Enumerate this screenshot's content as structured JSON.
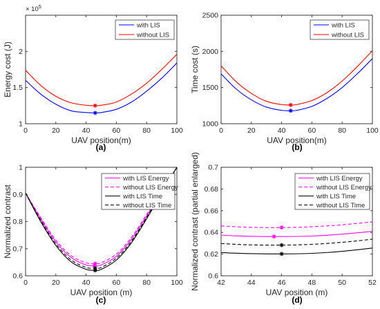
{
  "chart_data": [
    {
      "id": "a",
      "type": "line",
      "caption": "(a)",
      "xlabel": "UAV position(m)",
      "ylabel": "Energy cost (J)",
      "multiplier": "× 10",
      "multiplier_exp": "5",
      "xlim": [
        0,
        100
      ],
      "ylim": [
        1,
        2.5
      ],
      "xticks": [
        0,
        20,
        40,
        60,
        80,
        100
      ],
      "yticks": [
        1,
        1.5,
        2
      ],
      "ytick_labels": [
        "1",
        "1.5",
        "2"
      ],
      "legend": "top-right",
      "x": [
        0,
        10,
        20,
        30,
        40,
        46,
        50,
        60,
        70,
        80,
        90,
        100
      ],
      "series": [
        {
          "name": "with LIS",
          "color": "#0000ff",
          "dash": "solid",
          "values": [
            1.6,
            1.41,
            1.27,
            1.18,
            1.155,
            1.15,
            1.155,
            1.2,
            1.3,
            1.45,
            1.63,
            1.84
          ],
          "marker": {
            "x": 46,
            "y": 1.15
          }
        },
        {
          "name": "without LIS",
          "color": "#ff0000",
          "dash": "solid",
          "values": [
            1.74,
            1.53,
            1.38,
            1.29,
            1.255,
            1.25,
            1.255,
            1.3,
            1.41,
            1.56,
            1.75,
            1.96
          ],
          "marker": {
            "x": 46,
            "y": 1.25
          }
        }
      ]
    },
    {
      "id": "b",
      "type": "line",
      "caption": "(b)",
      "xlabel": "UAV position(m)",
      "ylabel": "Time cost (s)",
      "xlim": [
        0,
        100
      ],
      "ylim": [
        1000,
        2500
      ],
      "xticks": [
        0,
        20,
        40,
        60,
        80,
        100
      ],
      "yticks": [
        1000,
        1500,
        2000,
        2500
      ],
      "ytick_labels": [
        "1000",
        "1500",
        "2000",
        "2500"
      ],
      "legend": "top-right",
      "x": [
        0,
        10,
        20,
        30,
        40,
        46,
        50,
        60,
        70,
        80,
        90,
        100
      ],
      "series": [
        {
          "name": "with LIS",
          "color": "#0000ff",
          "dash": "solid",
          "values": [
            1690,
            1480,
            1330,
            1230,
            1185,
            1180,
            1185,
            1240,
            1350,
            1500,
            1690,
            1900
          ],
          "marker": {
            "x": 46,
            "y": 1180
          }
        },
        {
          "name": "without LIS",
          "color": "#ff0000",
          "dash": "solid",
          "values": [
            1800,
            1580,
            1420,
            1310,
            1265,
            1260,
            1265,
            1320,
            1430,
            1590,
            1790,
            2010
          ],
          "marker": {
            "x": 46,
            "y": 1260
          }
        }
      ]
    },
    {
      "id": "c",
      "type": "line",
      "caption": "(c)",
      "xlabel": "UAV position (m)",
      "ylabel": "Normalized contrast",
      "xlim": [
        0,
        100
      ],
      "ylim": [
        0.6,
        1
      ],
      "xticks": [
        0,
        20,
        40,
        60,
        80,
        100
      ],
      "yticks": [
        0.6,
        0.7,
        0.8,
        0.9,
        1
      ],
      "ytick_labels": [
        "0.6",
        "0.7",
        "0.8",
        "0.9",
        "1"
      ],
      "legend": "top-right",
      "x": [
        0,
        10,
        20,
        30,
        40,
        46,
        50,
        60,
        70,
        80,
        90,
        100
      ],
      "series": [
        {
          "name": "with LIS Energy",
          "color": "#ff00ff",
          "dash": "solid",
          "values": [
            0.905,
            0.81,
            0.725,
            0.668,
            0.64,
            0.637,
            0.64,
            0.672,
            0.735,
            0.82,
            0.91,
            1.0
          ],
          "marker": {
            "x": 45.5,
            "y": 0.637
          }
        },
        {
          "name": "without LIS Energy",
          "color": "#ff00ff",
          "dash": "dashed",
          "values": [
            0.905,
            0.815,
            0.732,
            0.675,
            0.648,
            0.645,
            0.648,
            0.68,
            0.742,
            0.826,
            0.914,
            1.0
          ],
          "marker": {
            "x": 46,
            "y": 0.645
          }
        },
        {
          "name": "with LIS Time",
          "color": "#000000",
          "dash": "solid",
          "values": [
            0.905,
            0.8,
            0.712,
            0.652,
            0.624,
            0.62,
            0.624,
            0.658,
            0.722,
            0.81,
            0.905,
            1.0
          ],
          "marker": {
            "x": 46,
            "y": 0.62
          }
        },
        {
          "name": "without LIS Time",
          "color": "#000000",
          "dash": "dashed",
          "values": [
            0.905,
            0.805,
            0.718,
            0.659,
            0.631,
            0.628,
            0.631,
            0.665,
            0.728,
            0.815,
            0.908,
            1.0
          ],
          "marker": {
            "x": 46,
            "y": 0.628
          }
        }
      ]
    },
    {
      "id": "d",
      "type": "line",
      "caption": "(d)",
      "xlabel": "UAV position (m)",
      "ylabel": "Normalized contrast (partial enlarged)",
      "xlim": [
        42,
        52
      ],
      "ylim": [
        0.6,
        0.7
      ],
      "xticks": [
        42,
        44,
        46,
        48,
        50,
        52
      ],
      "yticks": [
        0.6,
        0.62,
        0.64,
        0.66,
        0.68,
        0.7
      ],
      "ytick_labels": [
        "0.6",
        "0.62",
        "0.64",
        "0.66",
        "0.68",
        "0.7"
      ],
      "legend": "top-right",
      "x": [
        42,
        43,
        44,
        45,
        46,
        47,
        48,
        49,
        50,
        51,
        52
      ],
      "series": [
        {
          "name": "with LIS Energy",
          "color": "#ff00ff",
          "dash": "solid",
          "values": [
            0.6375,
            0.6368,
            0.6364,
            0.6362,
            0.6362,
            0.6363,
            0.6367,
            0.6374,
            0.6384,
            0.6396,
            0.641
          ],
          "marker": {
            "x": 45.5,
            "y": 0.6362
          }
        },
        {
          "name": "without LIS Energy",
          "color": "#ff00ff",
          "dash": "dashed",
          "values": [
            0.646,
            0.6452,
            0.6447,
            0.6445,
            0.6445,
            0.6447,
            0.6452,
            0.646,
            0.647,
            0.6483,
            0.6497
          ],
          "marker": {
            "x": 46,
            "y": 0.6445
          }
        },
        {
          "name": "with LIS Time",
          "color": "#000000",
          "dash": "solid",
          "values": [
            0.6215,
            0.6208,
            0.6204,
            0.6202,
            0.6202,
            0.6203,
            0.6207,
            0.6215,
            0.6226,
            0.624,
            0.6256
          ],
          "marker": {
            "x": 46,
            "y": 0.6202
          }
        },
        {
          "name": "without LIS Time",
          "color": "#000000",
          "dash": "dashed",
          "values": [
            0.6298,
            0.629,
            0.6285,
            0.6283,
            0.6283,
            0.6285,
            0.629,
            0.6298,
            0.6309,
            0.6322,
            0.6338
          ],
          "marker": {
            "x": 46,
            "y": 0.6283
          }
        }
      ]
    }
  ]
}
